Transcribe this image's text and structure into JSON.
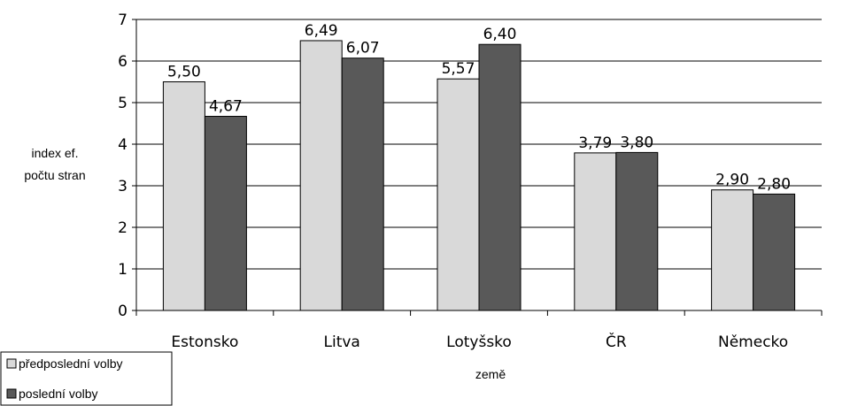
{
  "chart_data": {
    "type": "bar",
    "categories": [
      "Estonsko",
      "Litva",
      "Lotyšsko",
      "ČR",
      "Německo"
    ],
    "series": [
      {
        "name": "předposlední volby",
        "values": [
          5.5,
          6.49,
          5.57,
          3.79,
          2.9
        ],
        "labels": [
          "5,50",
          "6,49",
          "5,57",
          "3,79",
          "2,90"
        ],
        "color": "#d9d9d9"
      },
      {
        "name": "poslední volby",
        "values": [
          4.67,
          6.07,
          6.4,
          3.8,
          2.8
        ],
        "labels": [
          "4,67",
          "6,07",
          "6,40",
          "3,80",
          "2,80"
        ],
        "color": "#595959"
      }
    ],
    "ylim": [
      0,
      7
    ],
    "yticks": [
      "0",
      "1",
      "2",
      "3",
      "4",
      "5",
      "6",
      "7"
    ],
    "ylabel_lines": [
      "index ef.",
      "počtu stran"
    ],
    "xlabel": "země",
    "grid": true,
    "legend_position": "bottom-left"
  }
}
